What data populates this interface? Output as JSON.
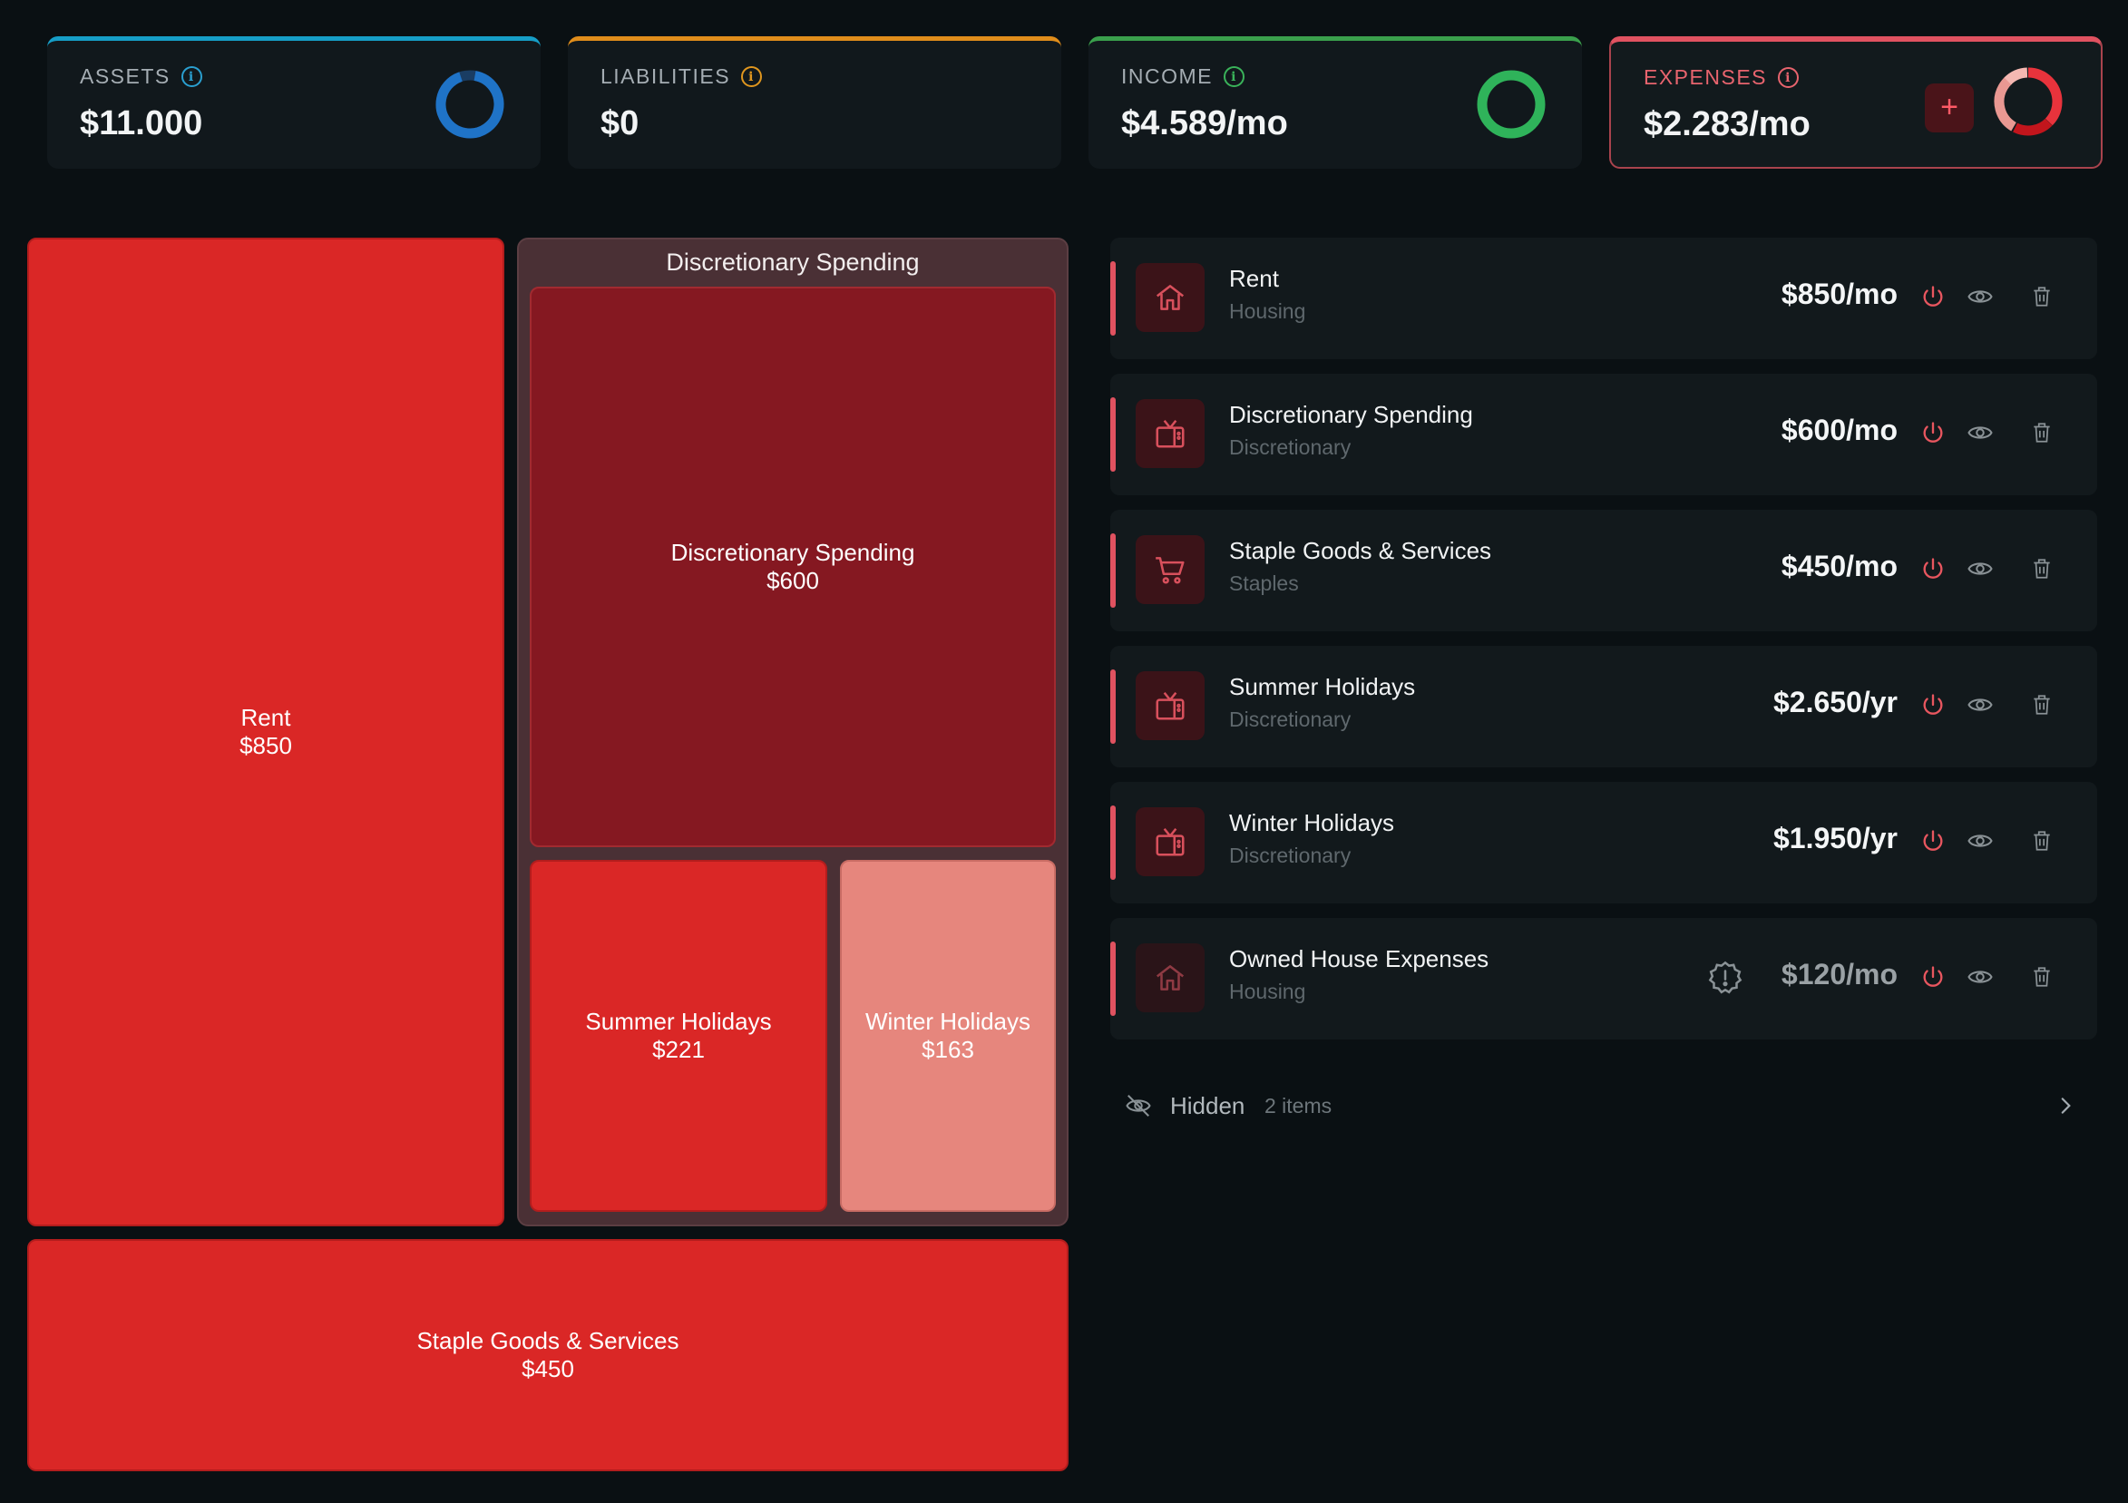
{
  "summary": {
    "assets": {
      "label": "ASSETS",
      "value": "$11.000",
      "color": "#1f73c7",
      "ratio": 0.92
    },
    "liabilities": {
      "label": "LIABILITIES",
      "value": "$0",
      "color": "#e0961e"
    },
    "income": {
      "label": "INCOME",
      "value": "$4.589/mo",
      "color": "#2fb35a",
      "ratio": 1.0
    },
    "expenses": {
      "label": "EXPENSES",
      "value": "$2.283/mo",
      "color": "#e8333c",
      "add_label": "+"
    }
  },
  "treemap": {
    "rent": {
      "name": "Rent",
      "value": "$850"
    },
    "discretionary_group": {
      "title": "Discretionary Spending"
    },
    "discretionary": {
      "name": "Discretionary Spending",
      "value": "$600"
    },
    "summer": {
      "name": "Summer Holidays",
      "value": "$221"
    },
    "winter": {
      "name": "Winter Holidays",
      "value": "$163"
    },
    "staples": {
      "name": "Staple Goods & Services",
      "value": "$450"
    }
  },
  "expenses": [
    {
      "name": "Rent",
      "category": "Housing",
      "amount": "$850/mo",
      "icon": "house-icon"
    },
    {
      "name": "Discretionary Spending",
      "category": "Discretionary",
      "amount": "$600/mo",
      "icon": "tv-icon"
    },
    {
      "name": "Staple Goods & Services",
      "category": "Staples",
      "amount": "$450/mo",
      "icon": "cart-icon"
    },
    {
      "name": "Summer Holidays",
      "category": "Discretionary",
      "amount": "$2.650/yr",
      "icon": "tv-icon"
    },
    {
      "name": "Winter Holidays",
      "category": "Discretionary",
      "amount": "$1.950/yr",
      "icon": "tv-icon"
    },
    {
      "name": "Owned House Expenses",
      "category": "Housing",
      "amount": "$120/mo",
      "icon": "house-icon",
      "warning": true
    }
  ],
  "hidden": {
    "label": "Hidden",
    "count": "2 items"
  },
  "colors": {
    "accent": "#e05260",
    "treemap_red": "#da2726",
    "treemap_dark": "#851821",
    "treemap_light": "#e6867d"
  }
}
